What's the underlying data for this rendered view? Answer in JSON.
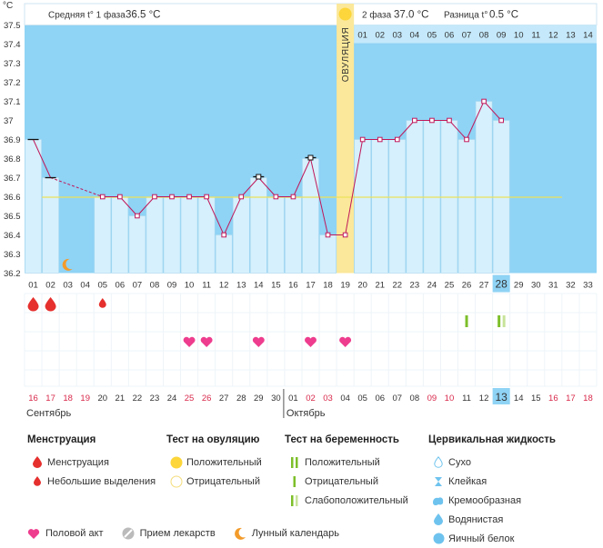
{
  "chart_data": {
    "type": "line",
    "unit_label": "°C",
    "ylim": [
      36.2,
      37.5
    ],
    "y_ticks": [
      "37.5",
      "37.4",
      "37.3",
      "37.2",
      "37.1",
      "37",
      "36.9",
      "36.8",
      "36.7",
      "36.6",
      "36.5",
      "36.4",
      "36.3",
      "36.2"
    ],
    "cycle_days": [
      "01",
      "02",
      "03",
      "04",
      "05",
      "06",
      "07",
      "08",
      "09",
      "10",
      "11",
      "12",
      "13",
      "14",
      "15",
      "16",
      "17",
      "18",
      "19",
      "20",
      "21",
      "22",
      "23",
      "24",
      "25",
      "26",
      "27",
      "28",
      "29",
      "30",
      "31",
      "32",
      "33"
    ],
    "highlighted_day": "28",
    "phase2_days": [
      "01",
      "02",
      "03",
      "04",
      "05",
      "06",
      "07",
      "08",
      "09",
      "10",
      "11",
      "12",
      "13",
      "14"
    ],
    "dates": [
      "16",
      "17",
      "18",
      "19",
      "20",
      "21",
      "22",
      "23",
      "24",
      "25",
      "26",
      "27",
      "28",
      "29",
      "30",
      "01",
      "02",
      "03",
      "04",
      "05",
      "06",
      "07",
      "08",
      "09",
      "10",
      "11",
      "12",
      "13",
      "14",
      "15",
      "16",
      "17",
      "18"
    ],
    "red_dates": [
      "18",
      "19",
      "25",
      "26",
      "02",
      "03",
      "09",
      "10",
      "16",
      "17"
    ],
    "highlighted_date": "13",
    "months": [
      "Сентябрь",
      "Октябрь"
    ],
    "ovulation_label": "ОВУЛЯЦИЯ",
    "ovulation_day": 19,
    "coverline": 36.6,
    "temperatures": [
      {
        "day": 1,
        "t": 36.9,
        "marker": "dash"
      },
      {
        "day": 2,
        "t": 36.7,
        "marker": "dash"
      },
      {
        "day": 5,
        "t": 36.6,
        "marker": "square"
      },
      {
        "day": 6,
        "t": 36.6,
        "marker": "square"
      },
      {
        "day": 7,
        "t": 36.5,
        "marker": "square"
      },
      {
        "day": 8,
        "t": 36.6,
        "marker": "square"
      },
      {
        "day": 9,
        "t": 36.6,
        "marker": "square"
      },
      {
        "day": 10,
        "t": 36.6,
        "marker": "square"
      },
      {
        "day": 11,
        "t": 36.6,
        "marker": "square"
      },
      {
        "day": 12,
        "t": 36.4,
        "marker": "square"
      },
      {
        "day": 13,
        "t": 36.6,
        "marker": "square"
      },
      {
        "day": 14,
        "t": 36.7,
        "marker": "box"
      },
      {
        "day": 15,
        "t": 36.6,
        "marker": "square"
      },
      {
        "day": 16,
        "t": 36.6,
        "marker": "square"
      },
      {
        "day": 17,
        "t": 36.8,
        "marker": "box"
      },
      {
        "day": 18,
        "t": 36.4,
        "marker": "square"
      },
      {
        "day": 19,
        "t": 36.4,
        "marker": "square"
      },
      {
        "day": 20,
        "t": 36.9,
        "marker": "square"
      },
      {
        "day": 21,
        "t": 36.9,
        "marker": "square"
      },
      {
        "day": 22,
        "t": 36.9,
        "marker": "square"
      },
      {
        "day": 23,
        "t": 37.0,
        "marker": "square"
      },
      {
        "day": 24,
        "t": 37.0,
        "marker": "square"
      },
      {
        "day": 25,
        "t": 37.0,
        "marker": "square"
      },
      {
        "day": 26,
        "t": 36.9,
        "marker": "square"
      },
      {
        "day": 27,
        "t": 37.1,
        "marker": "square"
      },
      {
        "day": 28,
        "t": 37.0,
        "marker": "square"
      }
    ],
    "menstruation_days": [
      1,
      2
    ],
    "spotting_days": [
      5
    ],
    "intercourse_days": [
      10,
      11,
      14,
      17,
      19
    ],
    "moon_days": [
      3
    ],
    "preg_test_negative_days": [
      26
    ],
    "preg_test_faint_days": [
      28
    ],
    "colors": {
      "blue_bg": "#8fd3f5",
      "bar_fill": "#d6f0fd",
      "bar_edge": "#a8d8ef",
      "ovulation": "#fbe89a",
      "line": "#c0185a",
      "coverline": "#ece15a",
      "menstruation": "#e5302e",
      "heart": "#ee3d8e",
      "test_green": "#7dbf2a",
      "test_faint": "#c8e39a",
      "moon": "#f39b2b",
      "ovtest_pos": "#fcd63a",
      "cervical": "#6ec3ee"
    }
  },
  "header": {
    "phase1_label": "Средняя t° 1 фаза",
    "phase1_value": "36.5 °C",
    "phase2_label": "2 фаза",
    "phase2_value": "37.0 °C",
    "diff_label": "Разница t°",
    "diff_value": "0.5 °C"
  },
  "legend": {
    "menstruation": {
      "title": "Менструация",
      "items": [
        "Менструация",
        "Небольшие выделения"
      ]
    },
    "ovulation_test": {
      "title": "Тест на овуляцию",
      "items": [
        "Положительный",
        "Отрицательный"
      ]
    },
    "pregnancy_test": {
      "title": "Тест на беременность",
      "items": [
        "Положительный",
        "Отрицательный",
        "Слабоположительный"
      ]
    },
    "cervical": {
      "title": "Цервикальная жидкость",
      "items": [
        "Сухо",
        "Клейкая",
        "Кремообразная",
        "Водянистая",
        "Яичный белок"
      ]
    },
    "bottom": [
      "Половой акт",
      "Прием лекарств",
      "Лунный календарь"
    ]
  }
}
